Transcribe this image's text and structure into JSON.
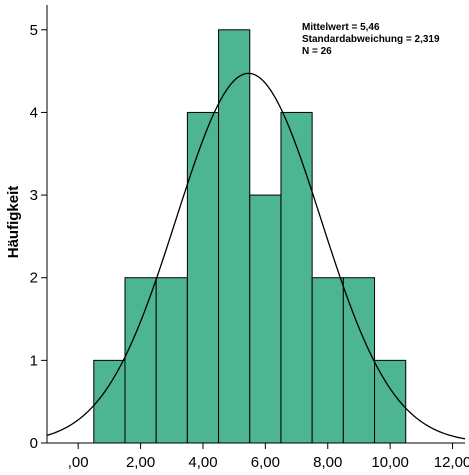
{
  "chart_data": {
    "type": "bar",
    "subtype": "histogram",
    "bins": [
      {
        "from": 0.5,
        "to": 1.5,
        "count": 1
      },
      {
        "from": 1.5,
        "to": 2.5,
        "count": 2
      },
      {
        "from": 2.5,
        "to": 3.5,
        "count": 2
      },
      {
        "from": 3.5,
        "to": 4.5,
        "count": 4
      },
      {
        "from": 4.5,
        "to": 5.5,
        "count": 5
      },
      {
        "from": 5.5,
        "to": 6.5,
        "count": 3
      },
      {
        "from": 6.5,
        "to": 7.5,
        "count": 4
      },
      {
        "from": 7.5,
        "to": 8.5,
        "count": 2
      },
      {
        "from": 8.5,
        "to": 9.5,
        "count": 2
      },
      {
        "from": 9.5,
        "to": 10.5,
        "count": 1
      }
    ],
    "normal_curve": {
      "mean": 5.46,
      "sd": 2.319,
      "n": 26,
      "bin_width": 1
    },
    "xlim": [
      -1,
      12.4
    ],
    "ylim": [
      0,
      5.3
    ],
    "x_ticks": [
      0,
      2,
      4,
      6,
      8,
      10,
      12
    ],
    "x_tick_labels": [
      ",00",
      "2,00",
      "4,00",
      "6,00",
      "8,00",
      "10,00",
      "12,00"
    ],
    "y_ticks": [
      0,
      1,
      2,
      3,
      4,
      5
    ],
    "y_tick_labels": [
      "0",
      "1",
      "2",
      "3",
      "4",
      "5"
    ],
    "xlabel": "",
    "ylabel": "Häufigkeit",
    "bar_color": "#4db591",
    "stats_lines": [
      "Mittelwert = 5,46",
      "Standardabweichung = 2,319",
      "N = 26"
    ],
    "legend_position": "top-right",
    "grid": false
  }
}
